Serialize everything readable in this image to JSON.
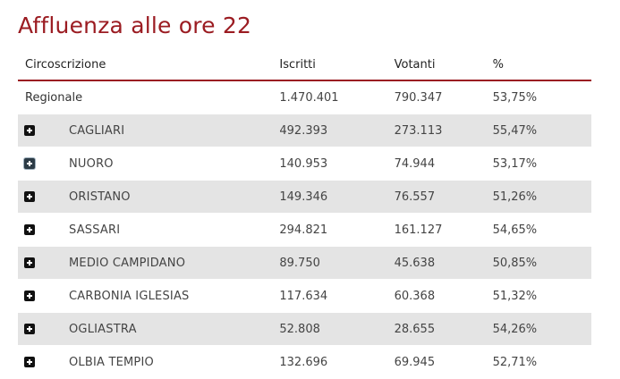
{
  "title": "Affluenza alle ore 22",
  "table": {
    "headers": {
      "circoscrizione": "Circoscrizione",
      "iscritti": "Iscritti",
      "votanti": "Votanti",
      "percent": "%"
    },
    "regional": {
      "name": "Regionale",
      "iscritti": "1.470.401",
      "votanti": "790.347",
      "percent": "53,75%"
    },
    "districts": [
      {
        "name": "CAGLIARI",
        "iscritti": "492.393",
        "votanti": "273.113",
        "percent": "55,47%",
        "icon": "expand-plus-icon"
      },
      {
        "name": "NUORO",
        "iscritti": "140.953",
        "votanti": "74.944",
        "percent": "53,17%",
        "icon": "expand-plus-icon"
      },
      {
        "name": "ORISTANO",
        "iscritti": "149.346",
        "votanti": "76.557",
        "percent": "51,26%",
        "icon": "expand-plus-icon"
      },
      {
        "name": "SASSARI",
        "iscritti": "294.821",
        "votanti": "161.127",
        "percent": "54,65%",
        "icon": "expand-plus-icon"
      },
      {
        "name": "MEDIO CAMPIDANO",
        "iscritti": "89.750",
        "votanti": "45.638",
        "percent": "50,85%",
        "icon": "expand-plus-icon"
      },
      {
        "name": "CARBONIA IGLESIAS",
        "iscritti": "117.634",
        "votanti": "60.368",
        "percent": "51,32%",
        "icon": "expand-plus-icon"
      },
      {
        "name": "OGLIASTRA",
        "iscritti": "52.808",
        "votanti": "28.655",
        "percent": "54,26%",
        "icon": "expand-plus-icon"
      },
      {
        "name": "OLBIA TEMPIO",
        "iscritti": "132.696",
        "votanti": "69.945",
        "percent": "52,71%",
        "icon": "expand-plus-icon"
      }
    ]
  },
  "colors": {
    "title": "#9b1c22",
    "header_rule": "#9b1c22",
    "stripe": "#e4e4e4"
  }
}
